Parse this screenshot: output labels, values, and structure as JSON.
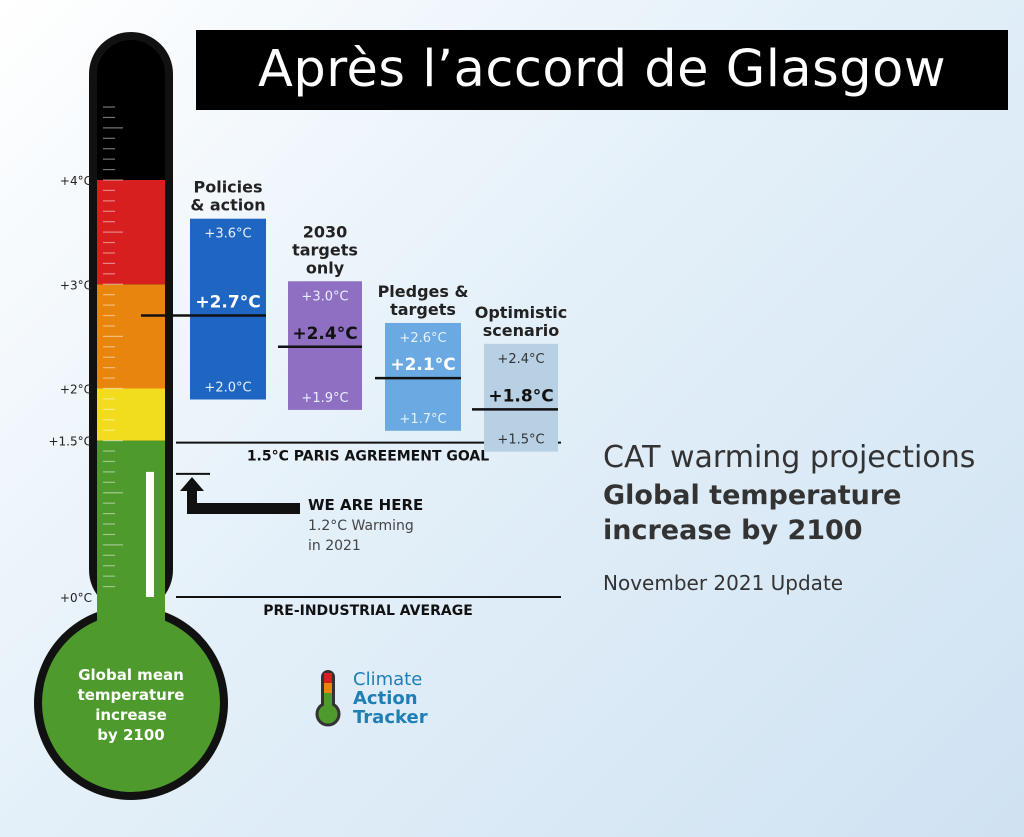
{
  "banner": {
    "title": "Après l’accord de Glasgow"
  },
  "side": {
    "title": "CAT warming projections",
    "subtitle": "Global temperature increase by 2100",
    "update": "November 2021 Update"
  },
  "logo": {
    "lines": [
      "Climate",
      "Action",
      "Tracker"
    ]
  },
  "chart_data": {
    "type": "bar",
    "axis": {
      "ticks": [
        {
          "value": 4.0,
          "label": "+4°C"
        },
        {
          "value": 3.0,
          "label": "+3°C"
        },
        {
          "value": 2.0,
          "label": "+2°C"
        },
        {
          "value": 1.5,
          "label": "+1.5°C"
        },
        {
          "value": 0.0,
          "label": "+0°C"
        }
      ]
    },
    "thermometer": {
      "bulb_text": [
        "Global mean",
        "temperature",
        "increase",
        "by 2100"
      ],
      "bands": [
        {
          "from": 0.0,
          "to": 1.5,
          "color": "#4e9a2c"
        },
        {
          "from": 1.5,
          "to": 2.0,
          "color": "#f2dc1e"
        },
        {
          "from": 2.0,
          "to": 3.0,
          "color": "#e8850f"
        },
        {
          "from": 3.0,
          "to": 4.0,
          "color": "#d71f1f"
        },
        {
          "from": 4.0,
          "to": 5.2,
          "color": "#000000"
        }
      ],
      "current_level": 1.2
    },
    "scenarios": [
      {
        "name": [
          "Policies",
          "& action"
        ],
        "low": 2.0,
        "high": 3.6,
        "mid": 2.7,
        "low_label": "+2.0°C",
        "high_label": "+3.6°C",
        "mid_label": "+2.7°C",
        "color": "#1f66c3"
      },
      {
        "name": [
          "2030",
          "targets",
          "only"
        ],
        "low": 1.9,
        "high": 3.0,
        "mid": 2.4,
        "low_label": "+1.9°C",
        "high_label": "+3.0°C",
        "mid_label": "+2.4°C",
        "color": "#8f6fc1"
      },
      {
        "name": [
          "Pledges &",
          "targets"
        ],
        "low": 1.7,
        "high": 2.6,
        "mid": 2.1,
        "low_label": "+1.7°C",
        "high_label": "+2.6°C",
        "mid_label": "+2.1°C",
        "color": "#6aa9e2"
      },
      {
        "name": [
          "Optimistic",
          "scenario"
        ],
        "low": 1.5,
        "high": 2.4,
        "mid": 1.8,
        "low_label": "+1.5°C",
        "high_label": "+2.4°C",
        "mid_label": "+1.8°C",
        "color": "#b7d0e4"
      }
    ],
    "reference_lines": [
      {
        "value": 1.5,
        "label": "1.5°C PARIS AGREEMENT GOAL"
      },
      {
        "value": 0.0,
        "label": "PRE-INDUSTRIAL AVERAGE"
      }
    ],
    "marker": {
      "value": 1.2,
      "title": "WE ARE HERE",
      "lines": [
        "1.2°C Warming",
        "in 2021"
      ]
    }
  }
}
